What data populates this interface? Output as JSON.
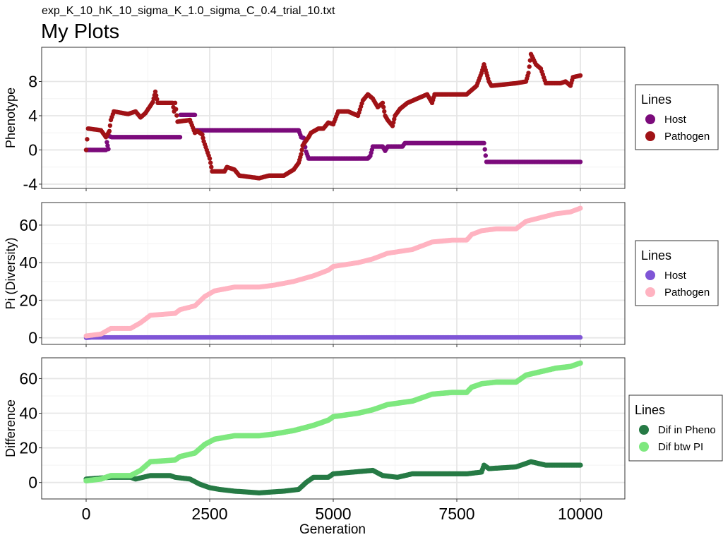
{
  "header": {
    "subtitle": "exp_K_10_hK_10_sigma_K_1.0_sigma_C_0.4_trial_10.txt",
    "title": "My Plots"
  },
  "xaxis": {
    "label": "Generation",
    "range": [
      -900,
      10900
    ],
    "ticks": [
      0,
      2500,
      5000,
      7500,
      10000
    ],
    "tick_labels": [
      "0",
      "2500",
      "5000",
      "7500",
      "10000"
    ]
  },
  "colors": {
    "host_pheno": "#7b0a7b",
    "pathogen_pheno": "#a01216",
    "host_pi": "#7f55d6",
    "pathogen_pi": "#ffb3c1",
    "dif_pheno": "#267a45",
    "dif_pi": "#7ee87f",
    "grid": "#e6e6e6",
    "border": "#333333"
  },
  "chart_data": [
    {
      "type": "scatter",
      "ylabel": "Phenotype",
      "ylim": [
        -4.5,
        12
      ],
      "yticks": [
        -4,
        0,
        4,
        8
      ],
      "ytick_labels": [
        "-4",
        "0",
        "4",
        "8"
      ],
      "grid": true,
      "legend": {
        "title": "Lines",
        "placement": "right"
      },
      "series": [
        {
          "name": "Host",
          "color_key": "host_pheno",
          "point_size": 3.2,
          "points": [
            [
              0,
              0
            ],
            [
              400,
              0
            ],
            [
              420,
              0.9
            ],
            [
              450,
              0.1
            ],
            [
              470,
              1.6
            ],
            [
              520,
              1.5
            ],
            [
              1900,
              1.5
            ],
            [
              1910,
              4.1
            ],
            [
              2200,
              4.1
            ],
            [
              2210,
              2.3
            ],
            [
              4200,
              2.3
            ],
            [
              4300,
              2.3
            ],
            [
              4350,
              1.5
            ],
            [
              4400,
              1.4
            ],
            [
              4450,
              -0.2
            ],
            [
              4500,
              -1.0
            ],
            [
              5700,
              -1.0
            ],
            [
              5750,
              -0.7
            ],
            [
              5800,
              0.4
            ],
            [
              6000,
              0.4
            ],
            [
              6050,
              -0.1
            ],
            [
              6100,
              0.4
            ],
            [
              6400,
              0.4
            ],
            [
              6450,
              0.8
            ],
            [
              8050,
              0.8
            ],
            [
              8100,
              -1.4
            ],
            [
              10000,
              -1.4
            ]
          ]
        },
        {
          "name": "Pathogen",
          "color_key": "pathogen_pheno",
          "point_size": 3.2,
          "points": [
            [
              0,
              0
            ],
            [
              40,
              2.5
            ],
            [
              300,
              2.3
            ],
            [
              400,
              1.5
            ],
            [
              470,
              2.2
            ],
            [
              500,
              3.5
            ],
            [
              560,
              4.5
            ],
            [
              850,
              4.2
            ],
            [
              1000,
              4.5
            ],
            [
              1100,
              3.8
            ],
            [
              1200,
              4.3
            ],
            [
              1350,
              5.6
            ],
            [
              1400,
              6.8
            ],
            [
              1450,
              5.5
            ],
            [
              1750,
              5.5
            ],
            [
              1780,
              4.5
            ],
            [
              1800,
              5.5
            ],
            [
              1850,
              3.3
            ],
            [
              2100,
              3.5
            ],
            [
              2200,
              2.0
            ],
            [
              2250,
              2.2
            ],
            [
              2350,
              1.8
            ],
            [
              2380,
              1.0
            ],
            [
              2500,
              -1.0
            ],
            [
              2550,
              -2.5
            ],
            [
              2800,
              -2.5
            ],
            [
              2850,
              -2.0
            ],
            [
              3000,
              -2.3
            ],
            [
              3100,
              -3.0
            ],
            [
              3500,
              -3.3
            ],
            [
              3700,
              -3.0
            ],
            [
              4000,
              -3.0
            ],
            [
              4200,
              -2.3
            ],
            [
              4300,
              -1.5
            ],
            [
              4350,
              -0.5
            ],
            [
              4380,
              0.5
            ],
            [
              4500,
              1.5
            ],
            [
              4550,
              2.0
            ],
            [
              4700,
              2.5
            ],
            [
              4800,
              2.5
            ],
            [
              4900,
              3.2
            ],
            [
              5000,
              3.0
            ],
            [
              5100,
              4.5
            ],
            [
              5300,
              4.5
            ],
            [
              5500,
              4.0
            ],
            [
              5600,
              5.8
            ],
            [
              5700,
              6.5
            ],
            [
              5800,
              6.0
            ],
            [
              5900,
              5.0
            ],
            [
              6000,
              5.5
            ],
            [
              6050,
              4.0
            ],
            [
              6100,
              3.5
            ],
            [
              6200,
              2.8
            ],
            [
              6250,
              4.0
            ],
            [
              6350,
              4.8
            ],
            [
              6500,
              5.5
            ],
            [
              6700,
              6.0
            ],
            [
              6900,
              6.5
            ],
            [
              7000,
              5.5
            ],
            [
              7050,
              6.5
            ],
            [
              7700,
              6.5
            ],
            [
              7800,
              7.0
            ],
            [
              7900,
              7.5
            ],
            [
              8000,
              9.0
            ],
            [
              8050,
              10.0
            ],
            [
              8100,
              9.0
            ],
            [
              8150,
              8.0
            ],
            [
              8200,
              7.5
            ],
            [
              8700,
              7.8
            ],
            [
              8900,
              8.0
            ],
            [
              8950,
              9.0
            ],
            [
              9000,
              11.2
            ],
            [
              9100,
              10.0
            ],
            [
              9200,
              9.5
            ],
            [
              9300,
              7.8
            ],
            [
              9600,
              7.8
            ],
            [
              9700,
              8.0
            ],
            [
              9800,
              7.5
            ],
            [
              9850,
              8.5
            ],
            [
              10000,
              8.7
            ]
          ]
        }
      ]
    },
    {
      "type": "scatter",
      "ylabel": "Pi (Diversity)",
      "ylim": [
        -3.5,
        72
      ],
      "yticks": [
        0,
        20,
        40,
        60
      ],
      "ytick_labels": [
        "0",
        "20",
        "40",
        "60"
      ],
      "grid": true,
      "legend": {
        "title": "Lines",
        "placement": "right"
      },
      "series": [
        {
          "name": "Host",
          "color_key": "host_pi",
          "point_size": 3.2,
          "points": [
            [
              0,
              0
            ],
            [
              100,
              0.2
            ],
            [
              10000,
              0.2
            ]
          ]
        },
        {
          "name": "Pathogen",
          "color_key": "pathogen_pi",
          "point_size": 3.5,
          "points": [
            [
              0,
              1
            ],
            [
              300,
              2
            ],
            [
              500,
              5
            ],
            [
              900,
              5
            ],
            [
              1100,
              8
            ],
            [
              1300,
              12
            ],
            [
              1800,
              13
            ],
            [
              1900,
              15
            ],
            [
              2200,
              17
            ],
            [
              2400,
              22
            ],
            [
              2600,
              25
            ],
            [
              2800,
              26
            ],
            [
              3000,
              27
            ],
            [
              3500,
              27
            ],
            [
              3800,
              28
            ],
            [
              4200,
              30
            ],
            [
              4600,
              33
            ],
            [
              4900,
              36
            ],
            [
              5000,
              38
            ],
            [
              5500,
              40
            ],
            [
              5800,
              42
            ],
            [
              6100,
              45
            ],
            [
              6600,
              47
            ],
            [
              7000,
              51
            ],
            [
              7400,
              52
            ],
            [
              7700,
              52
            ],
            [
              7800,
              55
            ],
            [
              8000,
              57
            ],
            [
              8300,
              58
            ],
            [
              8700,
              58
            ],
            [
              8900,
              62
            ],
            [
              9200,
              64
            ],
            [
              9500,
              66
            ],
            [
              9800,
              67
            ],
            [
              10000,
              69
            ]
          ]
        }
      ]
    },
    {
      "type": "scatter",
      "xlabel": "Generation",
      "ylabel": "Difference",
      "ylim": [
        -9.5,
        72
      ],
      "yticks": [
        0,
        20,
        40,
        60
      ],
      "ytick_labels": [
        "0",
        "20",
        "40",
        "60"
      ],
      "grid": true,
      "legend": {
        "title": "Lines",
        "placement": "right"
      },
      "series": [
        {
          "name": "Dif in Pheno",
          "color_key": "dif_pheno",
          "point_size": 3.6,
          "points": [
            [
              0,
              2
            ],
            [
              500,
              3
            ],
            [
              900,
              3
            ],
            [
              1000,
              2
            ],
            [
              1300,
              4
            ],
            [
              1700,
              4
            ],
            [
              1800,
              3
            ],
            [
              2100,
              2
            ],
            [
              2300,
              -1
            ],
            [
              2500,
              -3
            ],
            [
              2700,
              -4
            ],
            [
              3000,
              -5
            ],
            [
              3500,
              -6
            ],
            [
              4000,
              -5
            ],
            [
              4300,
              -4
            ],
            [
              4450,
              0
            ],
            [
              4600,
              3
            ],
            [
              4900,
              3
            ],
            [
              5000,
              5
            ],
            [
              5400,
              6
            ],
            [
              5800,
              7
            ],
            [
              6000,
              4
            ],
            [
              6300,
              3
            ],
            [
              6600,
              5
            ],
            [
              7000,
              5
            ],
            [
              7700,
              5
            ],
            [
              8000,
              6
            ],
            [
              8050,
              10
            ],
            [
              8150,
              8
            ],
            [
              8700,
              9
            ],
            [
              9000,
              12
            ],
            [
              9300,
              10
            ],
            [
              9600,
              10
            ],
            [
              10000,
              10
            ]
          ]
        },
        {
          "name": "Dif btw PI",
          "color_key": "dif_pi",
          "point_size": 3.8,
          "points": [
            [
              0,
              1
            ],
            [
              300,
              2
            ],
            [
              500,
              4
            ],
            [
              900,
              4
            ],
            [
              1100,
              7
            ],
            [
              1300,
              12
            ],
            [
              1800,
              13
            ],
            [
              1900,
              15
            ],
            [
              2200,
              17
            ],
            [
              2400,
              22
            ],
            [
              2600,
              25
            ],
            [
              2800,
              26
            ],
            [
              3000,
              27
            ],
            [
              3500,
              27
            ],
            [
              3800,
              28
            ],
            [
              4200,
              30
            ],
            [
              4600,
              33
            ],
            [
              4900,
              36
            ],
            [
              5000,
              38
            ],
            [
              5500,
              40
            ],
            [
              5800,
              42
            ],
            [
              6100,
              45
            ],
            [
              6600,
              47
            ],
            [
              7000,
              51
            ],
            [
              7400,
              52
            ],
            [
              7700,
              52
            ],
            [
              7800,
              55
            ],
            [
              8000,
              57
            ],
            [
              8300,
              58
            ],
            [
              8700,
              58
            ],
            [
              8900,
              62
            ],
            [
              9200,
              64
            ],
            [
              9500,
              66
            ],
            [
              9800,
              67
            ],
            [
              10000,
              69
            ]
          ]
        }
      ]
    }
  ]
}
